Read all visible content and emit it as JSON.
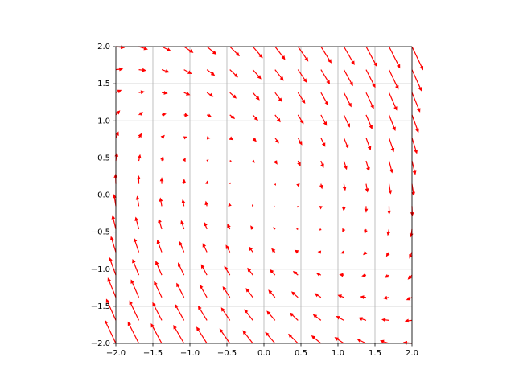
{
  "chart_data": {
    "type": "quiver",
    "color": "#ff0000",
    "grid": true,
    "xlim": [
      -2,
      2
    ],
    "ylim": [
      -2,
      2
    ],
    "xticks": [
      {
        "value": -2,
        "label": "−2.0"
      },
      {
        "value": -1.5,
        "label": "−1.5"
      },
      {
        "value": -1,
        "label": "−1.0"
      },
      {
        "value": -0.5,
        "label": "−0.5"
      },
      {
        "value": 0,
        "label": "0.0"
      },
      0.5,
      {
        "value": 1,
        "label": "1.0"
      },
      1.5,
      {
        "value": 2,
        "label": "2.0"
      }
    ],
    "yticks": [
      {
        "value": -2,
        "label": "−2.0"
      },
      {
        "value": -1.5,
        "label": "−1.5"
      },
      {
        "value": -1,
        "label": "−1.0"
      },
      {
        "value": -0.5,
        "label": "−0.5"
      },
      {
        "value": 0,
        "label": "0.0"
      },
      0.5,
      {
        "value": 1,
        "label": "1.0"
      },
      1.5,
      {
        "value": 2,
        "label": "2.0"
      }
    ],
    "x": [
      -2,
      -1.69,
      -1.38,
      -1.08,
      -0.77,
      -0.46,
      -0.15,
      0.15,
      0.46,
      0.77,
      1.08,
      1.38,
      1.69,
      2
    ],
    "y": [
      -2,
      -1.69,
      -1.38,
      -1.08,
      -0.77,
      -0.46,
      -0.15,
      0.15,
      0.46,
      0.77,
      1.08,
      1.38,
      1.69,
      2
    ],
    "u": [
      [
        -2,
        -1.97,
        -1.94,
        -1.91,
        -1.88,
        -1.85,
        -1.82,
        -1.78,
        -1.75,
        -1.72,
        -1.69,
        -1.66,
        -1.63,
        -1.6
      ],
      [
        -1.72,
        -1.69,
        -1.66,
        -1.63,
        -1.6,
        -1.57,
        -1.54,
        -1.5,
        -1.47,
        -1.44,
        -1.41,
        -1.38,
        -1.35,
        -1.32
      ],
      [
        -1.44,
        -1.41,
        -1.38,
        -1.35,
        -1.32,
        -1.29,
        -1.26,
        -1.22,
        -1.19,
        -1.16,
        -1.13,
        -1.1,
        -1.07,
        -1.04
      ],
      [
        -1.17,
        -1.14,
        -1.11,
        -1.08,
        -1.05,
        -1.02,
        -0.99,
        -0.95,
        -0.92,
        -0.89,
        -0.86,
        -0.83,
        -0.8,
        -0.77
      ],
      [
        -0.89,
        -0.86,
        -0.83,
        -0.8,
        -0.77,
        -0.74,
        -0.71,
        -0.67,
        -0.64,
        -0.61,
        -0.58,
        -0.55,
        -0.52,
        -0.49
      ],
      [
        -0.61,
        -0.58,
        -0.55,
        -0.52,
        -0.49,
        -0.46,
        -0.43,
        -0.39,
        -0.36,
        -0.33,
        -0.3,
        -0.27,
        -0.24,
        -0.21
      ],
      [
        -0.34,
        -0.31,
        -0.28,
        -0.25,
        -0.22,
        -0.19,
        -0.16,
        -0.12,
        -0.09,
        -0.06,
        -0.03,
        0,
        0.03,
        0.06
      ],
      [
        -0.06,
        -0.03,
        0,
        0.03,
        0.06,
        0.09,
        0.12,
        0.16,
        0.19,
        0.22,
        0.25,
        0.28,
        0.31,
        0.34
      ],
      [
        0.21,
        0.24,
        0.27,
        0.3,
        0.33,
        0.36,
        0.39,
        0.43,
        0.46,
        0.49,
        0.52,
        0.55,
        0.58,
        0.61
      ],
      [
        0.49,
        0.52,
        0.55,
        0.58,
        0.61,
        0.64,
        0.67,
        0.71,
        0.74,
        0.77,
        0.8,
        0.83,
        0.86,
        0.89
      ],
      [
        0.77,
        0.8,
        0.83,
        0.86,
        0.89,
        0.92,
        0.95,
        0.99,
        1.02,
        1.05,
        1.08,
        1.11,
        1.14,
        1.17
      ],
      [
        1.04,
        1.07,
        1.1,
        1.13,
        1.16,
        1.19,
        1.22,
        1.26,
        1.29,
        1.32,
        1.35,
        1.38,
        1.41,
        1.44
      ],
      [
        1.32,
        1.35,
        1.38,
        1.41,
        1.44,
        1.47,
        1.5,
        1.54,
        1.57,
        1.6,
        1.63,
        1.66,
        1.69,
        1.72
      ],
      [
        1.6,
        1.63,
        1.66,
        1.69,
        1.72,
        1.75,
        1.78,
        1.82,
        1.85,
        1.88,
        1.91,
        1.94,
        1.97,
        2
      ]
    ],
    "v": [
      [
        4.2,
        3.89,
        3.58,
        3.28,
        2.97,
        2.66,
        2.35,
        2.05,
        1.74,
        1.43,
        1.12,
        0.82,
        0.51,
        0.2
      ],
      [
        3.86,
        3.55,
        3.24,
        2.94,
        2.63,
        2.32,
        2.01,
        1.71,
        1.4,
        1.09,
        0.78,
        0.48,
        0.17,
        -0.14
      ],
      [
        3.52,
        3.21,
        2.9,
        2.6,
        2.29,
        1.98,
        1.67,
        1.37,
        1.06,
        0.75,
        0.44,
        0.14,
        -0.17,
        -0.48
      ],
      [
        3.19,
        2.88,
        2.57,
        2.27,
        1.96,
        1.65,
        1.34,
        1.04,
        0.73,
        0.42,
        0.11,
        -0.19,
        -0.5,
        -0.81
      ],
      [
        2.85,
        2.54,
        2.23,
        1.93,
        1.62,
        1.31,
        1,
        0.7,
        0.39,
        0.08,
        -0.23,
        -0.53,
        -0.84,
        -1.15
      ],
      [
        2.51,
        2.2,
        1.89,
        1.59,
        1.28,
        0.97,
        0.66,
        0.36,
        0.05,
        -0.26,
        -0.57,
        -0.87,
        -1.18,
        -1.49
      ],
      [
        2.17,
        1.86,
        1.55,
        1.25,
        0.94,
        0.63,
        0.32,
        0.02,
        -0.29,
        -0.6,
        -0.91,
        -1.21,
        -1.52,
        -1.83
      ],
      [
        1.83,
        1.52,
        1.21,
        0.91,
        0.6,
        0.29,
        -0.02,
        -0.32,
        -0.63,
        -0.94,
        -1.25,
        -1.55,
        -1.86,
        -2.17
      ],
      [
        1.49,
        1.18,
        0.87,
        0.57,
        0.26,
        -0.05,
        -0.36,
        -0.66,
        -0.97,
        -1.28,
        -1.59,
        -1.89,
        -2.2,
        -2.51
      ],
      [
        1.15,
        0.84,
        0.53,
        0.23,
        -0.08,
        -0.39,
        -0.7,
        -1,
        -1.31,
        -1.62,
        -1.93,
        -2.23,
        -2.54,
        -2.85
      ],
      [
        0.81,
        0.5,
        0.19,
        -0.11,
        -0.42,
        -0.73,
        -1.04,
        -1.34,
        -1.65,
        -1.96,
        -2.27,
        -2.57,
        -2.88,
        -3.19
      ],
      [
        0.48,
        0.17,
        -0.14,
        -0.44,
        -0.75,
        -1.06,
        -1.37,
        -1.67,
        -1.98,
        -2.29,
        -2.6,
        -2.9,
        -3.21,
        -3.52
      ],
      [
        0.14,
        -0.17,
        -0.48,
        -0.78,
        -1.09,
        -1.4,
        -1.71,
        -2.01,
        -2.32,
        -2.63,
        -2.94,
        -3.24,
        -3.55,
        -3.86
      ],
      [
        -0.2,
        -0.51,
        -0.82,
        -1.12,
        -1.43,
        -1.74,
        -2.05,
        -2.35,
        -2.66,
        -2.97,
        -3.28,
        -3.58,
        -3.89,
        -4.2
      ]
    ]
  }
}
